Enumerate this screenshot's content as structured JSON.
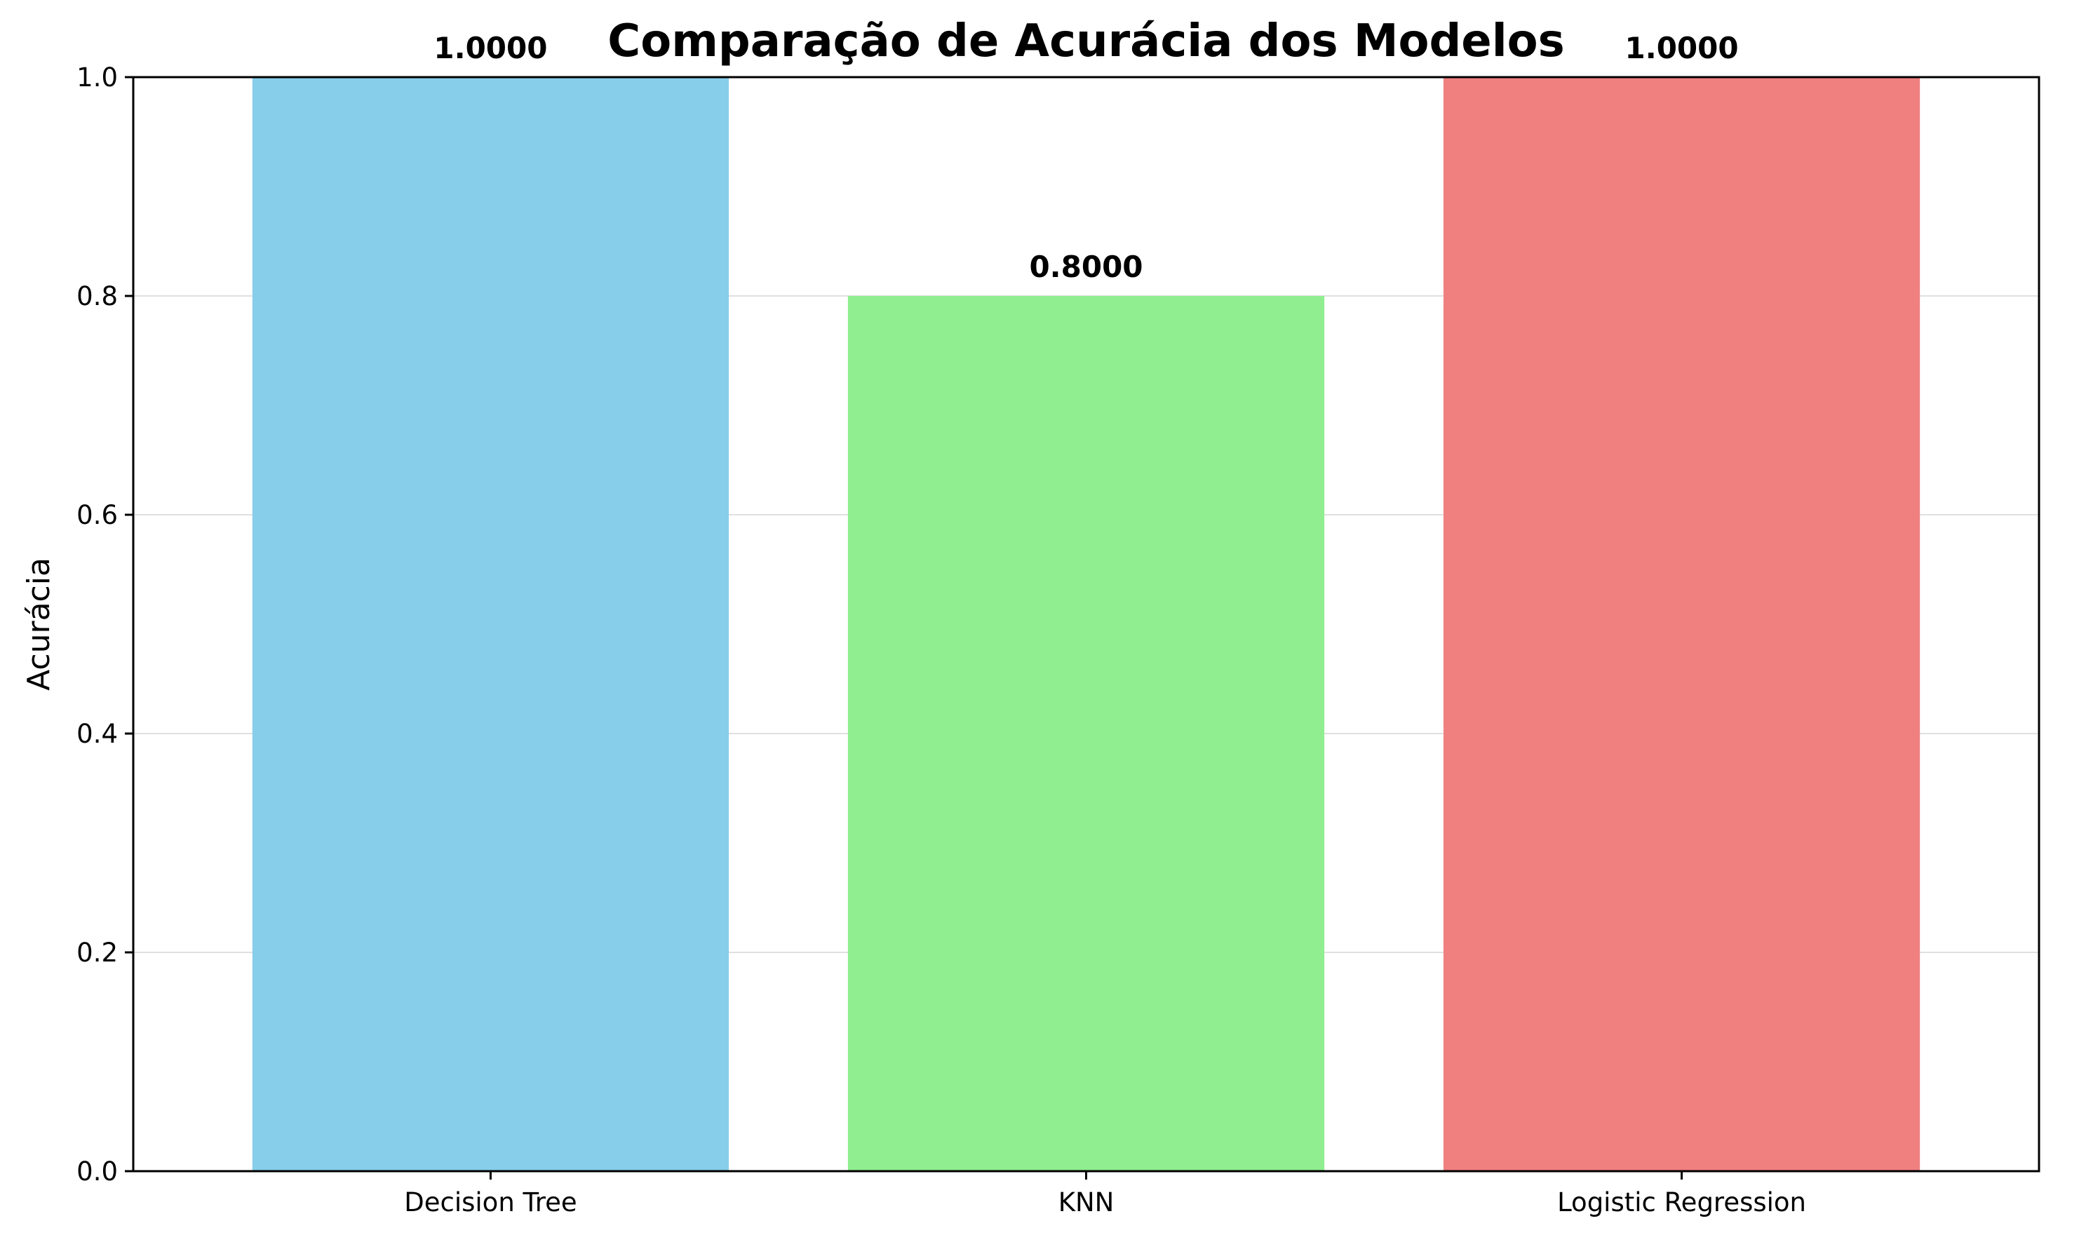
{
  "chart_data": {
    "type": "bar",
    "title": "Comparação de Acurácia dos Modelos",
    "xlabel": "",
    "ylabel": "Acurácia",
    "categories": [
      "Decision Tree",
      "KNN",
      "Logistic Regression"
    ],
    "values": [
      1.0,
      0.8,
      1.0
    ],
    "value_labels": [
      "1.0000",
      "0.8000",
      "1.0000"
    ],
    "colors": [
      "#87CEEB",
      "#90EE90",
      "#F08080"
    ],
    "ylim": [
      0,
      1.0
    ],
    "yticks": [
      0.0,
      0.2,
      0.4,
      0.6,
      0.8,
      1.0
    ],
    "ytick_labels": [
      "0.0",
      "0.2",
      "0.4",
      "0.6",
      "0.8",
      "1.0"
    ],
    "grid": "y-axis only, light gray",
    "legend": "none"
  }
}
